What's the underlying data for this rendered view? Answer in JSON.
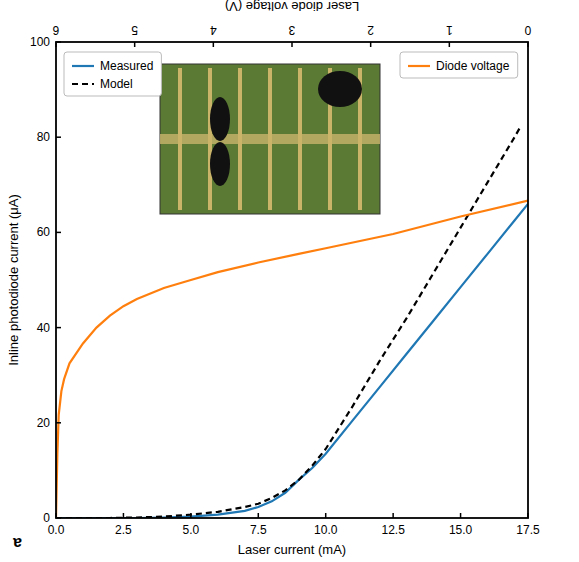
{
  "chart_data": {
    "type": "line",
    "panel_label": "a",
    "x_label": "Laser current (mA)",
    "y_label": "Inline photodiode current (μA)",
    "y2_label": "Laser diode voltage (V)",
    "xlim": [
      0,
      17.5
    ],
    "xticks": [
      {
        "value": 0,
        "label": "0.0"
      },
      {
        "value": 2.5,
        "label": "2.5"
      },
      {
        "value": 5,
        "label": "5.0"
      },
      {
        "value": 7.5,
        "label": "7.5"
      },
      {
        "value": 10,
        "label": "10.0"
      },
      {
        "value": 12.5,
        "label": "12.5"
      },
      {
        "value": 15,
        "label": "15.0"
      },
      {
        "value": 17.5,
        "label": "17.5"
      }
    ],
    "ylim": [
      0,
      100
    ],
    "yticks": [
      0,
      20,
      40,
      60,
      80,
      100
    ],
    "y2lim": [
      0,
      6
    ],
    "y2ticks": [
      0,
      1,
      2,
      3,
      4,
      5,
      6
    ],
    "legend": "upper left",
    "grid": false,
    "series": [
      {
        "name": "Measured",
        "color": "#1f77b4",
        "line_style": "solid",
        "x": [
          0,
          1,
          2,
          3,
          4,
          5,
          6,
          7,
          7.5,
          8,
          8.5,
          9,
          9.5,
          10,
          11,
          12,
          13,
          14,
          15,
          16,
          17,
          17.5
        ],
        "values": [
          0,
          0,
          0,
          0,
          0.1,
          0.3,
          0.7,
          1.5,
          2.3,
          3.5,
          5.3,
          8,
          10.5,
          13.5,
          20.5,
          27.5,
          34.5,
          41.5,
          48.5,
          55.5,
          62.5,
          66
        ]
      },
      {
        "name": "Model",
        "color": "#000000",
        "line_style": "dashed",
        "x": [
          0,
          2,
          3,
          4,
          5,
          6,
          7,
          7.5,
          8,
          8.5,
          9,
          9.5,
          10,
          11,
          12,
          13,
          14,
          15,
          16,
          17,
          17.2
        ],
        "values": [
          0,
          0,
          0.1,
          0.3,
          0.7,
          1.3,
          2.3,
          3,
          4.2,
          5.8,
          8,
          11,
          14.5,
          23.5,
          33,
          42,
          51.5,
          61,
          70.5,
          80,
          82
        ]
      },
      {
        "name": "Diode voltage",
        "color": "#ff7f0e",
        "line_style": "solid",
        "axis": "y2",
        "x": [
          0,
          0.05,
          0.1,
          0.2,
          0.3,
          0.5,
          1,
          1.5,
          2,
          2.5,
          3,
          4,
          5,
          6,
          7.5,
          9,
          10,
          12.5,
          15,
          17.5
        ],
        "values": [
          0,
          0.8,
          1.3,
          1.6,
          1.75,
          1.95,
          2.2,
          2.4,
          2.55,
          2.67,
          2.76,
          2.9,
          3.0,
          3.1,
          3.22,
          3.33,
          3.4,
          3.58,
          3.8,
          4.0
        ]
      }
    ]
  }
}
